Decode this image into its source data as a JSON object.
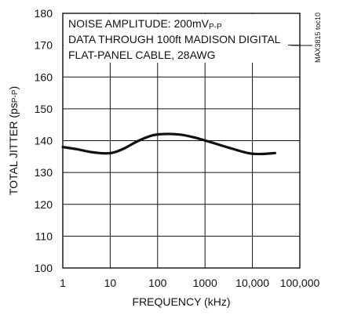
{
  "chart_data": {
    "type": "line",
    "title": "",
    "xlabel": "FREQUENCY (kHz)",
    "ylabel": "TOTAL JITTER (psP-P)",
    "ylabel_parts": {
      "main": "TOTAL JITTER (ps",
      "sub": "P-P",
      "end": ")"
    },
    "xscale": "log",
    "xlim": [
      1,
      100000
    ],
    "ylim": [
      100,
      180
    ],
    "x_ticks": [
      "1",
      "10",
      "100",
      "1000",
      "10,000",
      "100,000"
    ],
    "y_ticks": [
      "100",
      "110",
      "120",
      "130",
      "140",
      "150",
      "160",
      "170",
      "180"
    ],
    "grid": true,
    "annotations": [
      {
        "text": "NOISE AMPLITUDE: 200mV",
        "sub": "P-P"
      },
      {
        "text": "DATA THROUGH 100ft MADISON DIGITAL",
        "sub": ""
      },
      {
        "text": "FLAT-PANEL CABLE, 28AWG",
        "sub": ""
      }
    ],
    "side_label": "MAX3815 toc10",
    "series": [
      {
        "x": [
          1,
          2,
          4,
          8,
          12,
          20,
          40,
          80,
          150,
          300,
          600,
          1200,
          3000,
          8000,
          14000,
          30000
        ],
        "y": [
          138,
          137.3,
          136.4,
          136.0,
          136.3,
          137.6,
          140.0,
          141.7,
          142.1,
          141.9,
          141.0,
          139.7,
          137.9,
          136.1,
          135.8,
          136.1
        ]
      }
    ]
  }
}
